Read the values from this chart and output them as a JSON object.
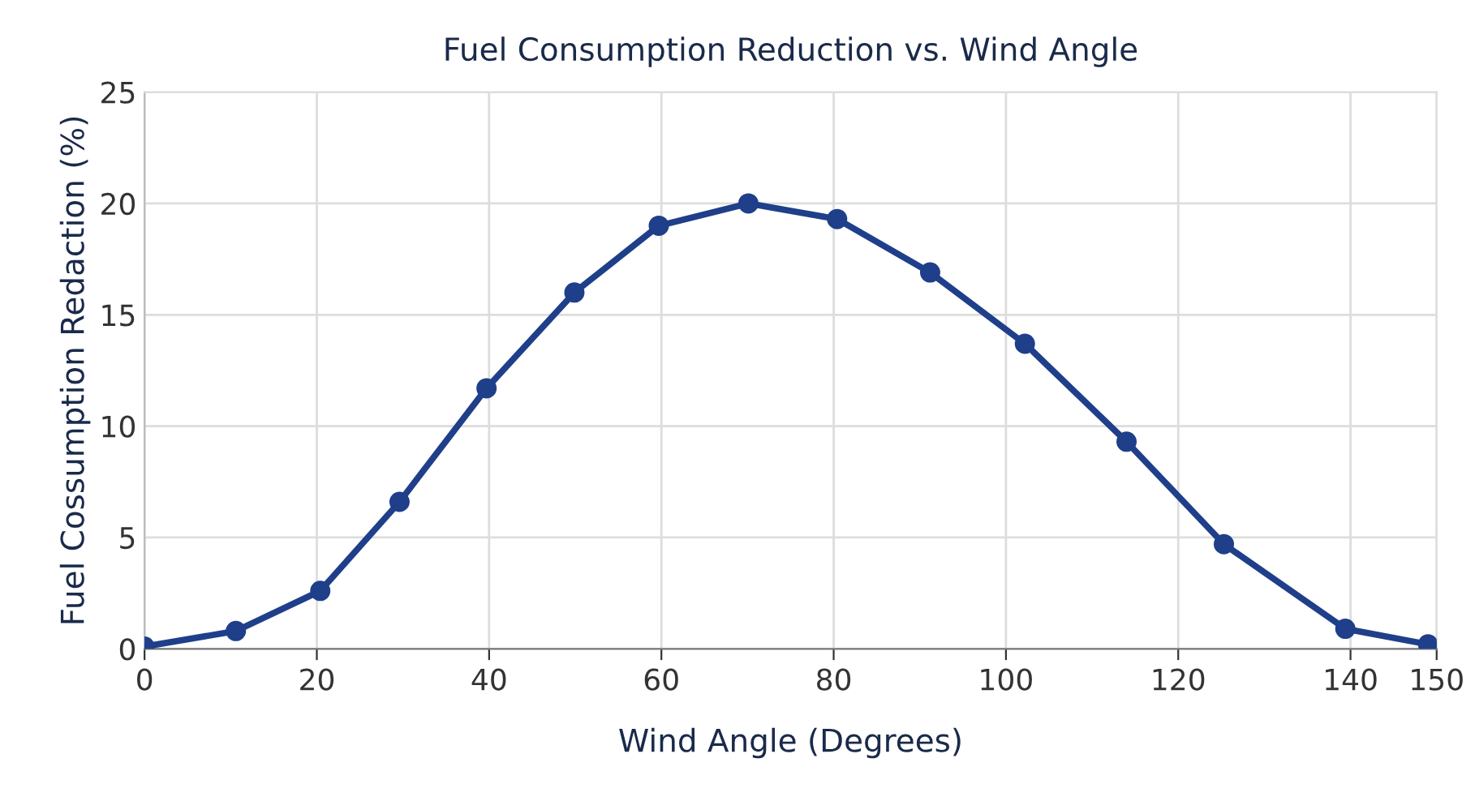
{
  "chart_data": {
    "type": "line",
    "title": "Fuel Consumption Reduction vs. Wind Angle",
    "xlabel": "Wind Angle (Degrees)",
    "ylabel": "Fuel Cossumption Redaction (%)",
    "x": [
      0,
      10.6,
      20.4,
      29.6,
      39.7,
      49.9,
      59.7,
      70.1,
      80.4,
      91.2,
      102.2,
      114,
      125.3,
      139.4,
      149
    ],
    "series": [
      {
        "color": "#1f3f8a",
        "values": [
          0.1,
          0.8,
          2.6,
          6.6,
          11.7,
          16.0,
          19.0,
          20.0,
          19.3,
          16.9,
          13.7,
          9.3,
          4.7,
          0.9,
          0.2
        ]
      }
    ],
    "xlim": [
      0,
      150
    ],
    "xticks": [
      0,
      20,
      40,
      60,
      80,
      100,
      120,
      140,
      150
    ],
    "ylim": [
      0,
      25
    ],
    "yticks": [
      0,
      5,
      10,
      15,
      20,
      25
    ],
    "grid": true,
    "marker": "circle",
    "line_style": "solid"
  }
}
